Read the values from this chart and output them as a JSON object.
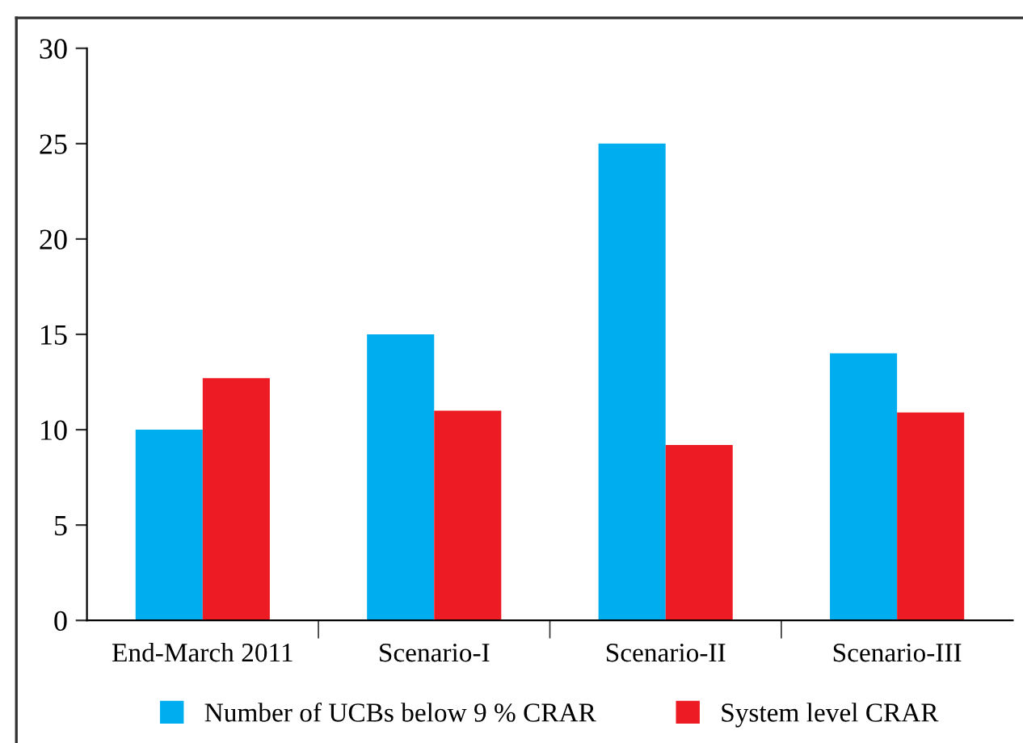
{
  "chart_data": {
    "type": "bar",
    "categories": [
      "End-March 2011",
      "Scenario-I",
      "Scenario-II",
      "Scenario-III"
    ],
    "series": [
      {
        "name": "Number of UCBs below 9 % CRAR",
        "color": "#00aeef",
        "values": [
          10,
          15,
          25,
          14
        ]
      },
      {
        "name": "System level CRAR",
        "color": "#ed1c24",
        "values": [
          12.7,
          11.0,
          9.2,
          10.9
        ]
      }
    ],
    "ylim": [
      0,
      30
    ],
    "yticks": [
      0,
      5,
      10,
      15,
      20,
      25,
      30
    ],
    "grid": false,
    "legend": "bottom"
  }
}
